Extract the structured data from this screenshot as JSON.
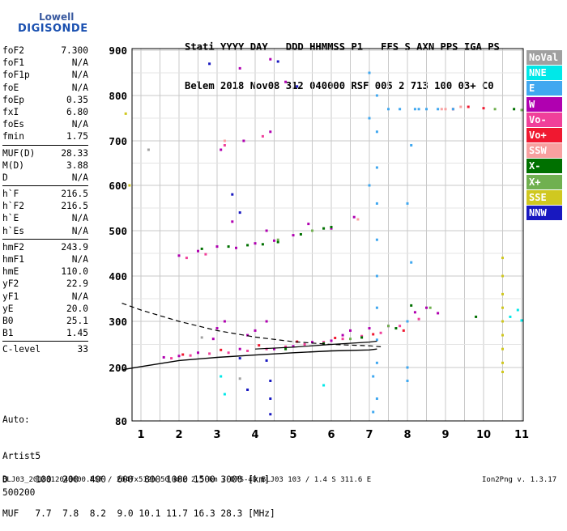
{
  "logo": {
    "line1": "Lowell",
    "line2": "DIGISONDE"
  },
  "header": {
    "line1": "Stati YYYY DAY   DDD HHMMSS P1   FFS S AXN PPS IGA PS",
    "line2": "Belem 2018 Nov08 312 040000 RSF 005 2 713 100 03+ C0"
  },
  "params": {
    "group1": [
      {
        "name": "foF2",
        "value": "7.300"
      },
      {
        "name": "foF1",
        "value": "N/A"
      },
      {
        "name": "foF1p",
        "value": "N/A"
      },
      {
        "name": "foE",
        "value": "N/A"
      },
      {
        "name": "foEp",
        "value": "0.35"
      },
      {
        "name": "fxI",
        "value": "6.80"
      },
      {
        "name": "foEs",
        "value": "N/A"
      },
      {
        "name": "fmin",
        "value": "1.75"
      }
    ],
    "group2": [
      {
        "name": "MUF(D)",
        "value": "28.33"
      },
      {
        "name": "M(D)",
        "value": "3.88"
      },
      {
        "name": "D",
        "value": "N/A"
      }
    ],
    "group3": [
      {
        "name": "h`F",
        "value": "216.5"
      },
      {
        "name": "h`F2",
        "value": "216.5"
      },
      {
        "name": "h`E",
        "value": "N/A"
      },
      {
        "name": "h`Es",
        "value": "N/A"
      }
    ],
    "group4": [
      {
        "name": "hmF2",
        "value": "243.9"
      },
      {
        "name": "hmF1",
        "value": "N/A"
      },
      {
        "name": "hmE",
        "value": "110.0"
      },
      {
        "name": "yF2",
        "value": "22.9"
      },
      {
        "name": "yF1",
        "value": "N/A"
      },
      {
        "name": "yE",
        "value": "20.0"
      },
      {
        "name": "B0",
        "value": "25.1"
      },
      {
        "name": "B1",
        "value": "1.45"
      }
    ],
    "group5": [
      {
        "name": "C-level",
        "value": "33"
      }
    ]
  },
  "auto": {
    "line1": "Auto:",
    "line2": "Artist5",
    "line3": "500200"
  },
  "legend": [
    {
      "label": "NoVal",
      "color": "#a0a0a0"
    },
    {
      "label": "NNE",
      "color": "#00e8e8"
    },
    {
      "label": "E",
      "color": "#40a8f0"
    },
    {
      "label": "W",
      "color": "#b000b0"
    },
    {
      "label": "Vo-",
      "color": "#f0409a"
    },
    {
      "label": "Vo+",
      "color": "#f01830"
    },
    {
      "label": "SSW",
      "color": "#f8a0a0"
    },
    {
      "label": "X-",
      "color": "#007000"
    },
    {
      "label": "X+",
      "color": "#70b050"
    },
    {
      "label": "SSE",
      "color": "#d0c820"
    },
    {
      "label": "NNW",
      "color": "#1818c0"
    }
  ],
  "footer": {
    "d_line": "D     100  200  400  600  800 1000 1500 3000 [km]",
    "muf_line": "MUF   7.7  7.8  8.2  9.0 10.1 11.7 16.3 28.3 [MHz]",
    "file_line": "BLJ03_2018312040000.RSF / 204fx512h 50 kHz 2.5 km / DPS-4D BLJ03 103 / 1.4 S 311.6 E",
    "version": "Ion2Png v. 1.3.17"
  },
  "chart_data": {
    "type": "scatter",
    "xlim": [
      0.5,
      11
    ],
    "ylim": [
      80,
      900
    ],
    "x_ticks": [
      1,
      2,
      3,
      4,
      5,
      6,
      7,
      8,
      9,
      10,
      11
    ],
    "y_ticks": [
      80,
      200,
      300,
      400,
      500,
      600,
      700,
      800,
      900
    ],
    "y_scale": "log-like",
    "grid": true,
    "legend_placement": "right",
    "series": [
      {
        "name": "W",
        "points": [
          [
            1.6,
            222
          ],
          [
            2.0,
            225
          ],
          [
            2.5,
            232
          ],
          [
            3.0,
            285
          ],
          [
            3.2,
            300
          ],
          [
            3.6,
            240
          ],
          [
            4.0,
            280
          ],
          [
            4.3,
            300
          ],
          [
            4.5,
            240
          ],
          [
            5.0,
            246
          ],
          [
            5.5,
            255
          ],
          [
            6.0,
            258
          ],
          [
            6.5,
            280
          ],
          [
            7.0,
            285
          ],
          [
            7.5,
            290
          ],
          [
            8.2,
            320
          ],
          [
            8.5,
            330
          ],
          [
            8.8,
            318
          ],
          [
            2.0,
            445
          ],
          [
            2.5,
            455
          ],
          [
            3.0,
            465
          ],
          [
            3.5,
            462
          ],
          [
            4.0,
            472
          ],
          [
            4.5,
            478
          ],
          [
            5.0,
            490
          ],
          [
            5.5,
            500
          ],
          [
            6.0,
            505
          ],
          [
            6.6,
            530
          ],
          [
            3.1,
            680
          ],
          [
            3.7,
            700
          ],
          [
            4.4,
            720
          ],
          [
            3.4,
            520
          ],
          [
            4.3,
            500
          ],
          [
            5.4,
            515
          ],
          [
            3.6,
            860
          ],
          [
            4.4,
            880
          ],
          [
            4.8,
            830
          ],
          [
            2.9,
            262
          ],
          [
            3.8,
            270
          ],
          [
            6.3,
            270
          ]
        ]
      },
      {
        "name": "Vo-",
        "points": [
          [
            1.8,
            220
          ],
          [
            2.3,
            226
          ],
          [
            2.8,
            230
          ],
          [
            3.3,
            232
          ],
          [
            3.8,
            236
          ],
          [
            4.3,
            240
          ],
          [
            4.8,
            245
          ],
          [
            5.3,
            250
          ],
          [
            5.8,
            255
          ],
          [
            6.3,
            262
          ],
          [
            6.8,
            268
          ],
          [
            7.3,
            275
          ],
          [
            7.8,
            290
          ],
          [
            8.3,
            305
          ],
          [
            2.2,
            440
          ],
          [
            2.7,
            448
          ],
          [
            3.2,
            690
          ],
          [
            4.2,
            710
          ]
        ]
      },
      {
        "name": "Vo+",
        "points": [
          [
            2.1,
            228
          ],
          [
            3.1,
            238
          ],
          [
            4.1,
            248
          ],
          [
            5.1,
            256
          ],
          [
            6.1,
            264
          ],
          [
            7.1,
            272
          ],
          [
            7.9,
            280
          ],
          [
            9.2,
            770
          ],
          [
            9.6,
            775
          ],
          [
            10.0,
            772
          ]
        ]
      },
      {
        "name": "X-",
        "points": [
          [
            2.6,
            460
          ],
          [
            3.3,
            465
          ],
          [
            3.8,
            468
          ],
          [
            4.2,
            470
          ],
          [
            4.6,
            475
          ],
          [
            5.2,
            492
          ],
          [
            5.8,
            505
          ],
          [
            6.0,
            508
          ],
          [
            4.8,
            240
          ],
          [
            5.8,
            252
          ],
          [
            6.8,
            265
          ],
          [
            7.7,
            285
          ],
          [
            9.8,
            310
          ],
          [
            10.8,
            770
          ],
          [
            8.1,
            335
          ]
        ]
      },
      {
        "name": "X+",
        "points": [
          [
            4.6,
            480
          ],
          [
            5.5,
            500
          ],
          [
            6.5,
            262
          ],
          [
            7.5,
            290
          ],
          [
            8.6,
            330
          ],
          [
            10.3,
            770
          ],
          [
            11.0,
            768
          ]
        ]
      },
      {
        "name": "E",
        "points": [
          [
            7.2,
            210
          ],
          [
            7.2,
            260
          ],
          [
            7.2,
            330
          ],
          [
            7.2,
            400
          ],
          [
            7.2,
            480
          ],
          [
            7.2,
            560
          ],
          [
            7.2,
            640
          ],
          [
            7.2,
            720
          ],
          [
            7.2,
            800
          ],
          [
            7.1,
            180
          ],
          [
            7.2,
            130
          ],
          [
            7.1,
            100
          ],
          [
            7.0,
            600
          ],
          [
            7.0,
            750
          ],
          [
            7.0,
            850
          ],
          [
            8.0,
            300
          ],
          [
            8.1,
            430
          ],
          [
            8.0,
            560
          ],
          [
            8.1,
            690
          ],
          [
            8.2,
            770
          ],
          [
            8.5,
            770
          ],
          [
            8.8,
            770
          ],
          [
            9.2,
            770
          ],
          [
            7.5,
            770
          ],
          [
            7.8,
            770
          ],
          [
            8.3,
            770
          ],
          [
            8.0,
            200
          ],
          [
            8.0,
            170
          ]
        ]
      },
      {
        "name": "NNE",
        "points": [
          [
            3.1,
            180
          ],
          [
            3.2,
            140
          ],
          [
            5.8,
            160
          ],
          [
            10.7,
            310
          ],
          [
            10.9,
            325
          ],
          [
            11.0,
            302
          ]
        ]
      },
      {
        "name": "NNW",
        "points": [
          [
            2.8,
            870
          ],
          [
            3.4,
            580
          ],
          [
            3.6,
            540
          ],
          [
            4.6,
            875
          ],
          [
            5.1,
            820
          ],
          [
            4.3,
            215
          ],
          [
            3.6,
            220
          ],
          [
            4.4,
            130
          ],
          [
            4.4,
            170
          ],
          [
            4.4,
            95
          ],
          [
            3.8,
            150
          ]
        ]
      },
      {
        "name": "SSE",
        "points": [
          [
            10.5,
            440
          ],
          [
            10.5,
            400
          ],
          [
            10.5,
            360
          ],
          [
            10.5,
            330
          ],
          [
            10.5,
            300
          ],
          [
            10.5,
            270
          ],
          [
            10.5,
            240
          ],
          [
            10.5,
            210
          ],
          [
            10.5,
            190
          ],
          [
            0.7,
            600
          ],
          [
            0.6,
            760
          ]
        ]
      },
      {
        "name": "SSW",
        "points": [
          [
            9.0,
            770
          ],
          [
            9.4,
            775
          ],
          [
            8.9,
            770
          ],
          [
            3.2,
            700
          ],
          [
            6.7,
            525
          ]
        ]
      },
      {
        "name": "NoVal",
        "points": [
          [
            1.2,
            680
          ],
          [
            2.6,
            265
          ],
          [
            3.6,
            175
          ]
        ]
      }
    ],
    "curve_solid": [
      [
        0.5,
        195
      ],
      [
        1.0,
        202
      ],
      [
        2.0,
        215
      ],
      [
        3.0,
        222
      ],
      [
        4.0,
        227
      ],
      [
        5.0,
        232
      ],
      [
        6.0,
        236
      ],
      [
        7.0,
        238
      ],
      [
        7.2,
        240
      ]
    ],
    "curve_dashed": [
      [
        0.5,
        340
      ],
      [
        1.0,
        325
      ],
      [
        2.0,
        300
      ],
      [
        3.0,
        280
      ],
      [
        4.0,
        266
      ],
      [
        5.0,
        256
      ],
      [
        6.0,
        250
      ],
      [
        7.0,
        247
      ],
      [
        7.3,
        245
      ]
    ],
    "curve_low_solid": [
      [
        4.0,
        240
      ],
      [
        5.0,
        244
      ],
      [
        6.0,
        250
      ],
      [
        7.0,
        255
      ],
      [
        7.2,
        257
      ]
    ]
  }
}
